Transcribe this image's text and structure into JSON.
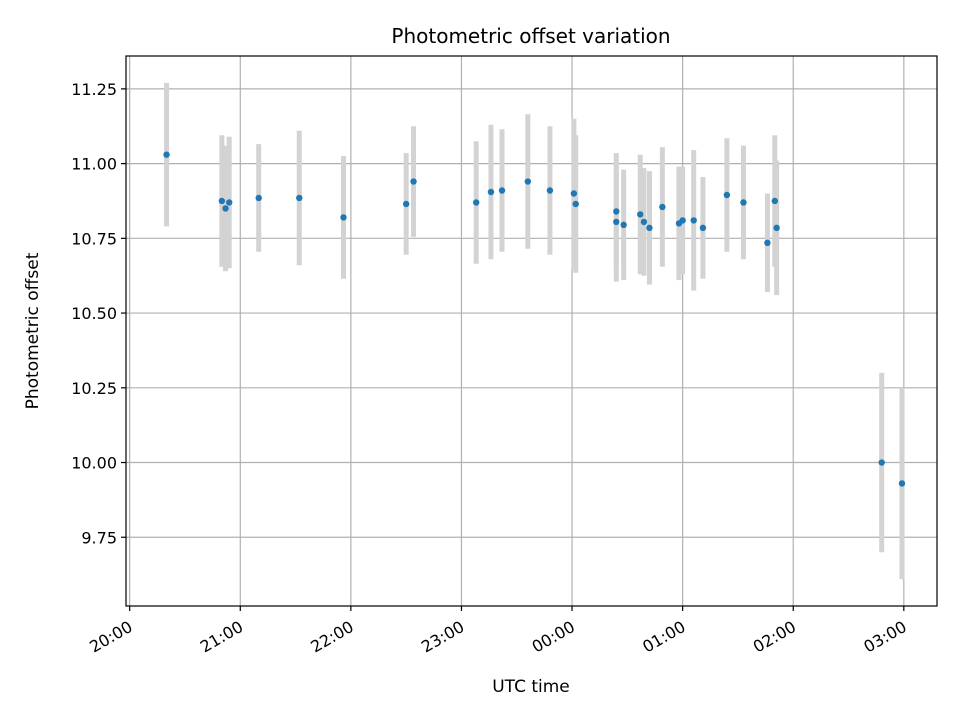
{
  "chart_data": {
    "type": "scatter",
    "title": "Photometric offset variation",
    "xlabel": "UTC time",
    "ylabel": "Photometric offset",
    "x_axis": "time",
    "x_ticks": [
      "20:00",
      "21:00",
      "22:00",
      "23:00",
      "00:00",
      "01:00",
      "02:00",
      "03:00"
    ],
    "y_ticks": [
      "9.75",
      "10.00",
      "10.25",
      "10.50",
      "10.75",
      "11.00",
      "11.25"
    ],
    "xlim": [
      "19:58",
      "03:18"
    ],
    "ylim": [
      9.52,
      11.36
    ],
    "grid": true,
    "series": [
      {
        "marker_color": "#1f77b4",
        "errorbar_color": "#d3d3d3",
        "points": [
          {
            "x": "20:20",
            "y": 11.03,
            "yerr": 0.24
          },
          {
            "x": "20:50",
            "y": 10.875,
            "yerr": 0.22
          },
          {
            "x": "20:52",
            "y": 10.85,
            "yerr": 0.21
          },
          {
            "x": "20:54",
            "y": 10.87,
            "yerr": 0.22
          },
          {
            "x": "21:10",
            "y": 10.885,
            "yerr": 0.18
          },
          {
            "x": "21:32",
            "y": 10.885,
            "yerr": 0.225
          },
          {
            "x": "21:56",
            "y": 10.82,
            "yerr": 0.205
          },
          {
            "x": "22:30",
            "y": 10.865,
            "yerr": 0.17
          },
          {
            "x": "22:34",
            "y": 10.94,
            "yerr": 0.185
          },
          {
            "x": "23:08",
            "y": 10.87,
            "yerr": 0.205
          },
          {
            "x": "23:16",
            "y": 10.905,
            "yerr": 0.225
          },
          {
            "x": "23:22",
            "y": 10.91,
            "yerr": 0.205
          },
          {
            "x": "23:36",
            "y": 10.94,
            "yerr": 0.225
          },
          {
            "x": "23:48",
            "y": 10.91,
            "yerr": 0.215
          },
          {
            "x": "00:01",
            "y": 10.9,
            "yerr": 0.25
          },
          {
            "x": "00:02",
            "y": 10.865,
            "yerr": 0.23
          },
          {
            "x": "00:24",
            "y": 10.84,
            "yerr": 0.195
          },
          {
            "x": "00:24",
            "y": 10.805,
            "yerr": 0.2
          },
          {
            "x": "00:28",
            "y": 10.795,
            "yerr": 0.185
          },
          {
            "x": "00:37",
            "y": 10.83,
            "yerr": 0.2
          },
          {
            "x": "00:39",
            "y": 10.805,
            "yerr": 0.18
          },
          {
            "x": "00:42",
            "y": 10.785,
            "yerr": 0.19
          },
          {
            "x": "00:49",
            "y": 10.855,
            "yerr": 0.2
          },
          {
            "x": "00:58",
            "y": 10.8,
            "yerr": 0.19
          },
          {
            "x": "01:00",
            "y": 10.81,
            "yerr": 0.18
          },
          {
            "x": "01:06",
            "y": 10.81,
            "yerr": 0.235
          },
          {
            "x": "01:11",
            "y": 10.785,
            "yerr": 0.17
          },
          {
            "x": "01:24",
            "y": 10.895,
            "yerr": 0.19
          },
          {
            "x": "01:33",
            "y": 10.87,
            "yerr": 0.19
          },
          {
            "x": "01:46",
            "y": 10.735,
            "yerr": 0.165
          },
          {
            "x": "01:50",
            "y": 10.875,
            "yerr": 0.22
          },
          {
            "x": "01:51",
            "y": 10.785,
            "yerr": 0.225
          },
          {
            "x": "02:48",
            "y": 10.0,
            "yerr": 0.3
          },
          {
            "x": "02:59",
            "y": 9.93,
            "yerr": 0.32
          }
        ]
      }
    ]
  }
}
